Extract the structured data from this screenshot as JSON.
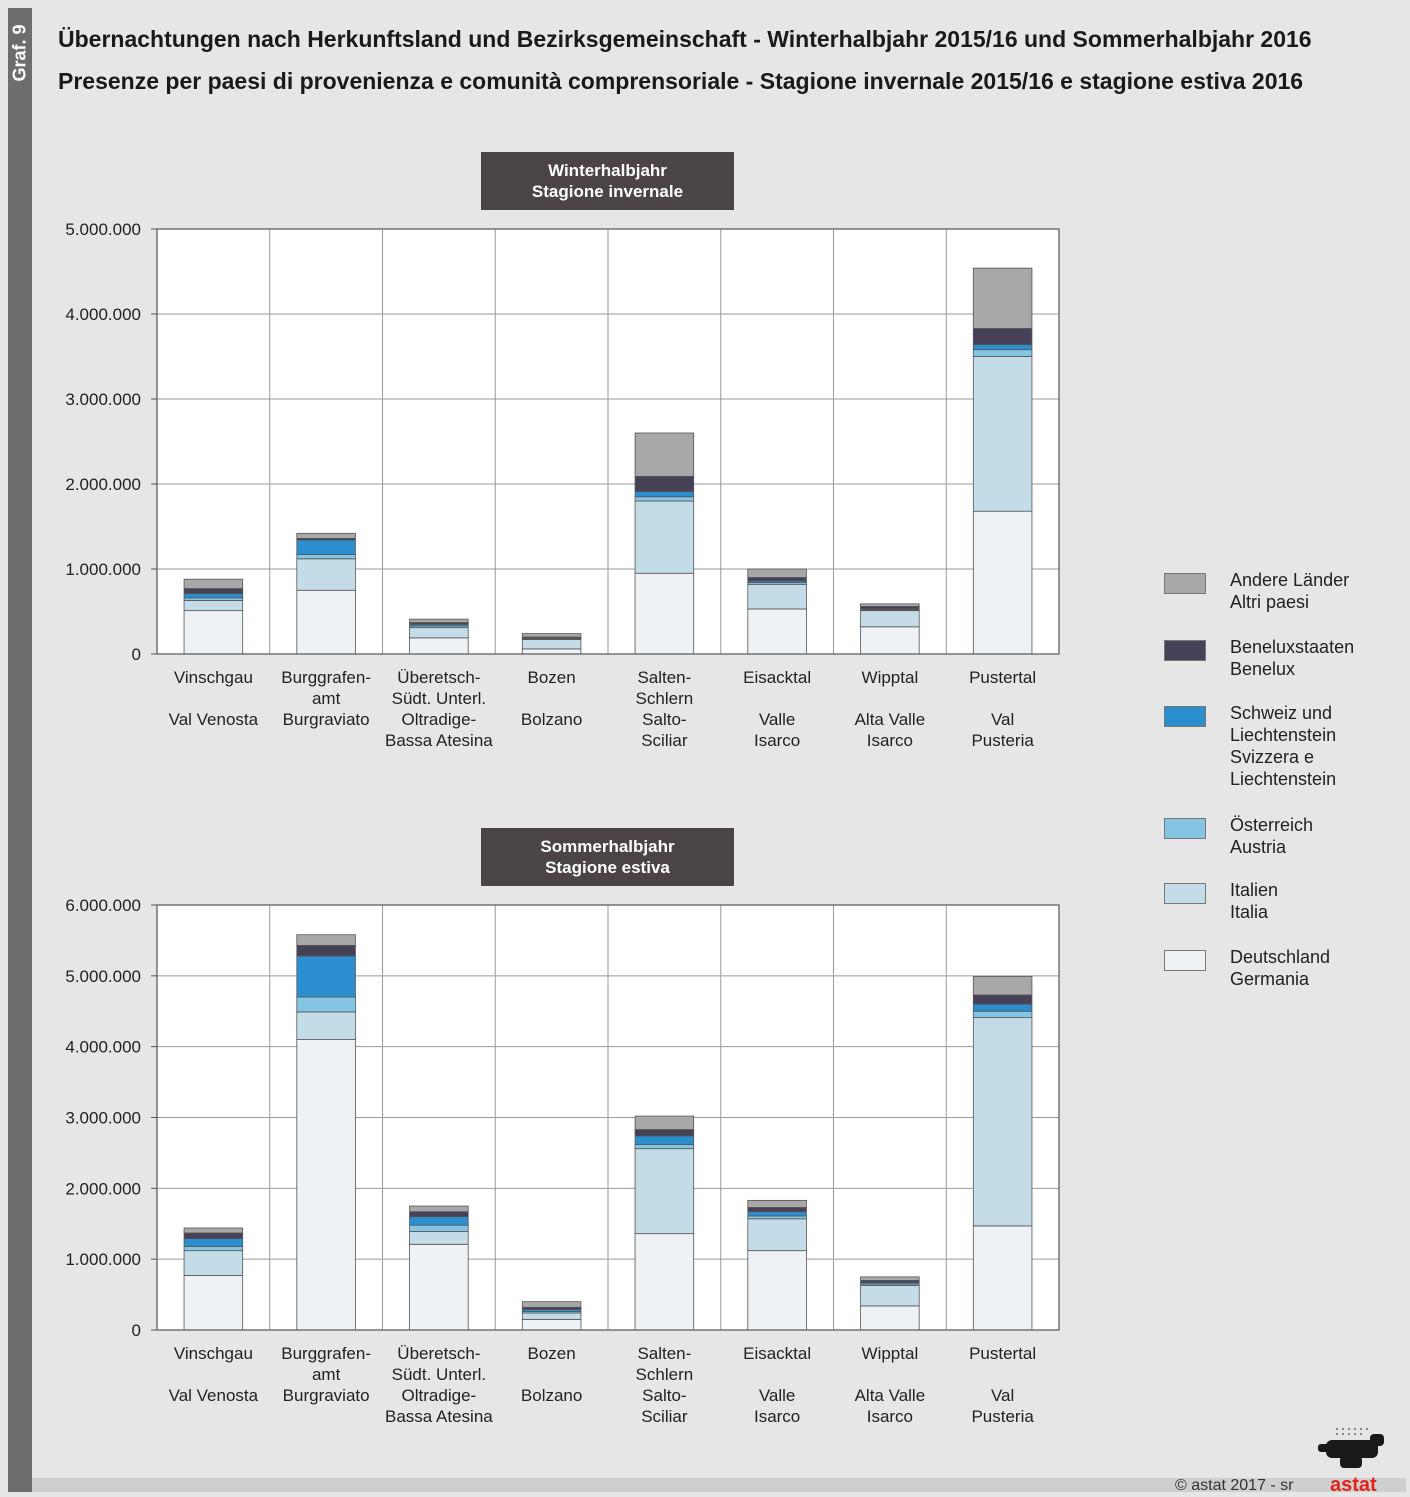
{
  "sidebar": {
    "label": "Graf. 9"
  },
  "title": {
    "de": "Übernachtungen nach Herkunftsland und Bezirksgemeinschaft - Winterhalbjahr 2015/16 und Sommerhalbjahr 2016",
    "it": "Presenze per paesi di provenienza e comunità comprensoriale - Stagione invernale 2015/16 e stagione estiva 2016"
  },
  "colors": {
    "Andere Länder": "#a8a8a8",
    "Beneluxstaaten": "#474157",
    "Schweiz und Liechtenstein": "#2b8fcf",
    "Österreich": "#86c4e4",
    "Italien": "#c4dce8",
    "Deutschland": "#eef2f5"
  },
  "legend": [
    {
      "key": "Andere Länder",
      "lines": [
        "Andere Länder",
        "Altri paesi"
      ]
    },
    {
      "key": "Beneluxstaaten",
      "lines": [
        "Beneluxstaaten",
        "Benelux"
      ]
    },
    {
      "key": "Schweiz und Liechtenstein",
      "lines": [
        "Schweiz und",
        "Liechtenstein",
        "Svizzera e",
        "Liechtenstein"
      ]
    },
    {
      "key": "Österreich",
      "lines": [
        "Österreich",
        "Austria"
      ]
    },
    {
      "key": "Italien",
      "lines": [
        "Italien",
        "Italia"
      ]
    },
    {
      "key": "Deutschland",
      "lines": [
        "Deutschland",
        "Germania"
      ]
    }
  ],
  "chart_data": [
    {
      "type": "bar",
      "stacked": true,
      "panel_label": [
        "Winterhalbjahr",
        "Stagione invernale"
      ],
      "categories": [
        [
          "Vinschgau",
          "",
          "Val Venosta"
        ],
        [
          "Burggrafen-",
          "amt",
          "Burgraviato"
        ],
        [
          "Überetsch-",
          "Südt. Unterl.",
          "Oltradige-",
          "Bassa Atesina"
        ],
        [
          "Bozen",
          "",
          "Bolzano"
        ],
        [
          "Salten-",
          "Schlern",
          "Salto-",
          "Sciliar"
        ],
        [
          "Eisacktal",
          "",
          "Valle",
          "Isarco"
        ],
        [
          "Wipptal",
          "",
          "Alta Valle",
          "Isarco"
        ],
        [
          "Pustertal",
          "",
          "Val",
          "Pusteria"
        ]
      ],
      "ylim": [
        0,
        5000000
      ],
      "yticks": [
        0,
        1000000,
        2000000,
        3000000,
        4000000,
        5000000
      ],
      "ytick_labels": [
        "0",
        "1.000.000",
        "2.000.000",
        "3.000.000",
        "4.000.000",
        "5.000.000"
      ],
      "grid": true,
      "series": [
        {
          "name": "Deutschland",
          "values": [
            510000,
            750000,
            190000,
            60000,
            950000,
            530000,
            320000,
            1680000
          ]
        },
        {
          "name": "Italien",
          "values": [
            120000,
            370000,
            120000,
            110000,
            850000,
            290000,
            190000,
            1820000
          ]
        },
        {
          "name": "Österreich",
          "values": [
            30000,
            50000,
            20000,
            10000,
            50000,
            20000,
            10000,
            80000
          ]
        },
        {
          "name": "Schweiz und Liechtenstein",
          "values": [
            50000,
            170000,
            20000,
            10000,
            60000,
            20000,
            10000,
            60000
          ]
        },
        {
          "name": "Beneluxstaaten",
          "values": [
            60000,
            20000,
            20000,
            10000,
            180000,
            40000,
            30000,
            190000
          ]
        },
        {
          "name": "Andere Länder",
          "values": [
            110000,
            60000,
            40000,
            40000,
            510000,
            100000,
            30000,
            710000
          ]
        }
      ]
    },
    {
      "type": "bar",
      "stacked": true,
      "panel_label": [
        "Sommerhalbjahr",
        "Stagione estiva"
      ],
      "categories": [
        [
          "Vinschgau",
          "",
          "Val Venosta"
        ],
        [
          "Burggrafen-",
          "amt",
          "Burgraviato"
        ],
        [
          "Überetsch-",
          "Südt. Unterl.",
          "Oltradige-",
          "Bassa Atesina"
        ],
        [
          "Bozen",
          "",
          "Bolzano"
        ],
        [
          "Salten-",
          "Schlern",
          "Salto-",
          "Sciliar"
        ],
        [
          "Eisacktal",
          "",
          "Valle",
          "Isarco"
        ],
        [
          "Wipptal",
          "",
          "Alta Valle",
          "Isarco"
        ],
        [
          "Pustertal",
          "",
          "Val",
          "Pusteria"
        ]
      ],
      "ylim": [
        0,
        6000000
      ],
      "yticks": [
        0,
        1000000,
        2000000,
        3000000,
        4000000,
        5000000,
        6000000
      ],
      "ytick_labels": [
        "0",
        "1.000.000",
        "2.000.000",
        "3.000.000",
        "4.000.000",
        "5.000.000",
        "6.000.000"
      ],
      "grid": true,
      "series": [
        {
          "name": "Deutschland",
          "values": [
            770000,
            4100000,
            1210000,
            150000,
            1360000,
            1120000,
            340000,
            1470000
          ]
        },
        {
          "name": "Italien",
          "values": [
            350000,
            390000,
            180000,
            90000,
            1200000,
            450000,
            290000,
            2940000
          ]
        },
        {
          "name": "Österreich",
          "values": [
            60000,
            210000,
            90000,
            20000,
            60000,
            40000,
            20000,
            90000
          ]
        },
        {
          "name": "Schweiz und Liechtenstein",
          "values": [
            110000,
            580000,
            120000,
            30000,
            120000,
            60000,
            20000,
            100000
          ]
        },
        {
          "name": "Beneluxstaaten",
          "values": [
            80000,
            150000,
            70000,
            30000,
            90000,
            60000,
            30000,
            130000
          ]
        },
        {
          "name": "Andere Länder",
          "values": [
            70000,
            150000,
            80000,
            80000,
            190000,
            100000,
            50000,
            260000
          ]
        }
      ]
    }
  ],
  "footer": {
    "copyright": "© astat 2017 - sr",
    "logo": "astat"
  }
}
